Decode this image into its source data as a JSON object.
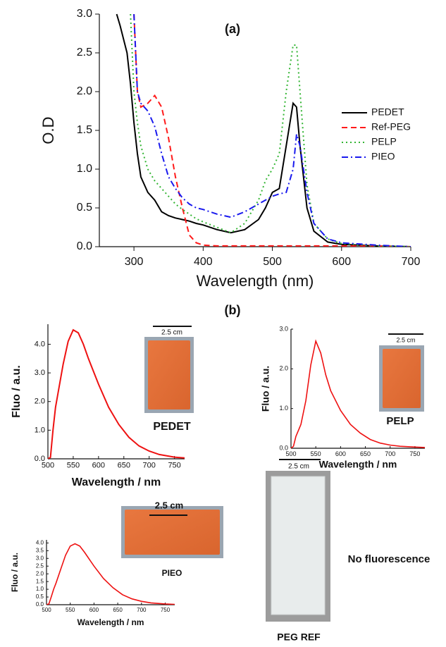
{
  "chart_data": [
    {
      "type": "line",
      "title": "(a)",
      "xlabel": "Wavelength (nm)",
      "ylabel": "O.D",
      "x": [
        275,
        280,
        290,
        295,
        300,
        305,
        310,
        320,
        330,
        340,
        350,
        360,
        370,
        380,
        390,
        400,
        420,
        440,
        460,
        480,
        490,
        500,
        510,
        520,
        530,
        535,
        540,
        550,
        560,
        580,
        600,
        650,
        700
      ],
      "series": [
        {
          "name": "PEDET",
          "color": "#000000",
          "style": "solid",
          "values": [
            3.0,
            2.85,
            2.5,
            2.1,
            1.6,
            1.2,
            0.9,
            0.7,
            0.6,
            0.45,
            0.4,
            0.37,
            0.35,
            0.33,
            0.3,
            0.28,
            0.22,
            0.18,
            0.22,
            0.35,
            0.5,
            0.7,
            0.75,
            1.3,
            1.85,
            1.8,
            1.3,
            0.5,
            0.2,
            0.06,
            0.03,
            0.01,
            0
          ]
        },
        {
          "name": "Ref-PEG",
          "color": "#ff1a1a",
          "style": "dashed",
          "values": [
            null,
            null,
            null,
            null,
            3.0,
            2.0,
            1.8,
            1.85,
            1.95,
            1.8,
            1.4,
            0.9,
            0.5,
            0.15,
            0.05,
            0.02,
            0.01,
            0.01,
            0.01,
            0.01,
            0.01,
            0.01,
            0.01,
            0.01,
            0.01,
            0.01,
            0.01,
            0.01,
            0.01,
            0.01,
            0.01,
            0.01,
            0
          ]
        },
        {
          "name": "PELP",
          "color": "#33b533",
          "style": "dotted",
          "values": [
            null,
            null,
            null,
            3.0,
            2.0,
            1.6,
            1.3,
            1.0,
            0.85,
            0.75,
            0.65,
            0.55,
            0.48,
            0.42,
            0.36,
            0.32,
            0.25,
            0.18,
            0.3,
            0.6,
            0.85,
            1.0,
            1.2,
            2.0,
            2.6,
            2.6,
            2.0,
            0.8,
            0.3,
            0.1,
            0.04,
            0.01,
            0
          ]
        },
        {
          "name": "PIEO",
          "color": "#1a1aee",
          "style": "dashdot",
          "values": [
            null,
            null,
            null,
            null,
            3.0,
            2.0,
            1.85,
            1.75,
            1.55,
            1.2,
            0.9,
            0.75,
            0.63,
            0.55,
            0.5,
            0.48,
            0.42,
            0.38,
            0.45,
            0.55,
            0.6,
            0.65,
            0.68,
            0.7,
            1.0,
            1.45,
            1.3,
            0.7,
            0.3,
            0.1,
            0.05,
            0.02,
            0
          ]
        }
      ],
      "xlim": [
        250,
        700
      ],
      "ylim": [
        0,
        3.0
      ],
      "xticks": [
        300,
        400,
        500,
        600,
        700
      ],
      "yticks": [
        {
          "value": 0,
          "label": "0.0"
        },
        {
          "value": 0.5,
          "label": "0.5"
        },
        {
          "value": 1,
          "label": "1.0"
        },
        {
          "value": 1.5,
          "label": "1.5"
        },
        {
          "value": 2,
          "label": "2.0"
        },
        {
          "value": 2.5,
          "label": "2.5"
        },
        {
          "value": 3,
          "label": "3.0"
        }
      ],
      "legend": "upper right"
    },
    {
      "type": "line",
      "title": "(b)",
      "xlabel": "Wavelength / nm",
      "ylabel": "Fluo / a.u.",
      "x": [
        500,
        505,
        510,
        515,
        520,
        530,
        540,
        550,
        560,
        570,
        580,
        600,
        620,
        640,
        660,
        680,
        700,
        720,
        750,
        770
      ],
      "series": [
        {
          "color": "#ee1111",
          "style": "solid",
          "values": [
            0,
            0.05,
            1.0,
            1.8,
            2.3,
            3.3,
            4.1,
            4.5,
            4.4,
            4.0,
            3.5,
            2.6,
            1.8,
            1.2,
            0.75,
            0.45,
            0.27,
            0.15,
            0.06,
            0.03
          ]
        }
      ],
      "xlim": [
        500,
        770
      ],
      "ylim": [
        0,
        4.7
      ],
      "xticks": [
        500,
        550,
        600,
        650,
        700,
        750
      ],
      "yticks": [
        {
          "value": 0,
          "label": "0.0"
        },
        {
          "value": 1,
          "label": "1.0"
        },
        {
          "value": 2,
          "label": "2.0"
        },
        {
          "value": 3,
          "label": "3.0"
        },
        {
          "value": 4,
          "label": "4.0"
        }
      ],
      "inset": {
        "scale_label": "2.5 cm",
        "sample_label": "PEDET"
      }
    },
    {
      "type": "line",
      "xlabel": "Wavelength / nm",
      "ylabel": "Fluo / a.u.",
      "x": [
        500,
        505,
        510,
        515,
        520,
        530,
        540,
        550,
        560,
        570,
        580,
        600,
        620,
        640,
        660,
        680,
        700,
        720,
        750,
        770
      ],
      "series": [
        {
          "color": "#ee1111",
          "style": "solid",
          "values": [
            0,
            0.05,
            0.3,
            0.45,
            0.6,
            1.2,
            2.1,
            2.7,
            2.4,
            1.85,
            1.45,
            0.95,
            0.6,
            0.38,
            0.22,
            0.13,
            0.08,
            0.05,
            0.03,
            0.02
          ]
        }
      ],
      "xlim": [
        500,
        770
      ],
      "ylim": [
        0,
        3.0
      ],
      "xticks": [
        500,
        550,
        600,
        650,
        700,
        750
      ],
      "yticks": [
        {
          "value": 0,
          "label": "0.0"
        },
        {
          "value": 1,
          "label": "1.0"
        },
        {
          "value": 2,
          "label": "2.0"
        },
        {
          "value": 3,
          "label": "3.0"
        }
      ],
      "inset": {
        "scale_label": "2.5 cm",
        "sample_label": "PELP"
      }
    },
    {
      "type": "line",
      "xlabel": "Wavelength / nm",
      "ylabel": "Fluo / a.u.",
      "x": [
        500,
        505,
        510,
        515,
        520,
        530,
        540,
        550,
        560,
        570,
        580,
        600,
        620,
        640,
        660,
        680,
        700,
        720,
        750,
        770
      ],
      "series": [
        {
          "color": "#ee1111",
          "style": "solid",
          "values": [
            0,
            0.05,
            0.5,
            1.0,
            1.4,
            2.3,
            3.2,
            3.8,
            3.95,
            3.8,
            3.4,
            2.5,
            1.7,
            1.1,
            0.65,
            0.38,
            0.22,
            0.12,
            0.05,
            0.02
          ]
        }
      ],
      "xlim": [
        500,
        770
      ],
      "ylim": [
        0,
        4.2
      ],
      "xticks": [
        500,
        550,
        600,
        650,
        700,
        750
      ],
      "yticks": [
        {
          "value": 0,
          "label": "0.0"
        },
        {
          "value": 0.5,
          "label": "0.5"
        },
        {
          "value": 1,
          "label": "1.0"
        },
        {
          "value": 1.5,
          "label": "1.5"
        },
        {
          "value": 2,
          "label": "2.0"
        },
        {
          "value": 2.5,
          "label": "2.5"
        },
        {
          "value": 3,
          "label": "3.0"
        },
        {
          "value": 3.5,
          "label": "3.5"
        },
        {
          "value": 4,
          "label": "4.0"
        }
      ],
      "inset": {
        "scale_label": "2.5 cm",
        "sample_label": "PIEO"
      }
    }
  ],
  "peg_ref": {
    "scale_label": "2.5 cm",
    "sample_label": "PEG REF",
    "note": "No fluorescence"
  }
}
